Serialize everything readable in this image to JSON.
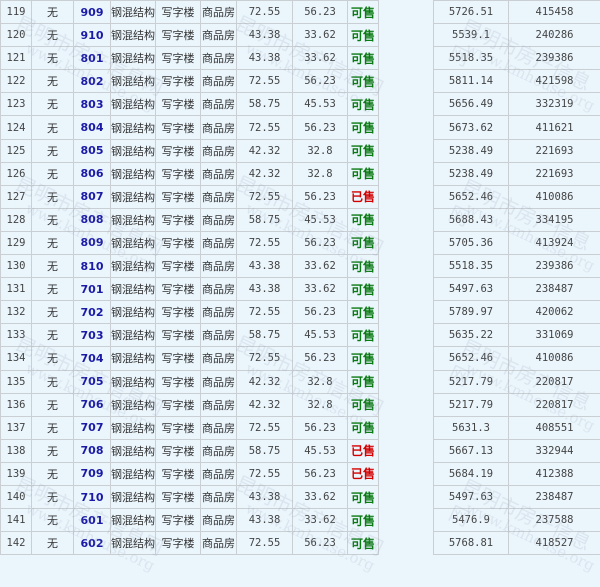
{
  "colors": {
    "available": "#0a7a12",
    "sold": "#d40000",
    "room_link": "#1a1aa6"
  },
  "rows": [
    {
      "no": "119",
      "floor_note": "无",
      "room": "909",
      "structure": "钢混结构",
      "usage": "写字楼",
      "type": "商品房",
      "build_area": "72.55",
      "inner_area": "56.23",
      "status": "可售",
      "unit_price": "5726.51",
      "total": "415458"
    },
    {
      "no": "120",
      "floor_note": "无",
      "room": "910",
      "structure": "钢混结构",
      "usage": "写字楼",
      "type": "商品房",
      "build_area": "43.38",
      "inner_area": "33.62",
      "status": "可售",
      "unit_price": "5539.1",
      "total": "240286"
    },
    {
      "no": "121",
      "floor_note": "无",
      "room": "801",
      "structure": "钢混结构",
      "usage": "写字楼",
      "type": "商品房",
      "build_area": "43.38",
      "inner_area": "33.62",
      "status": "可售",
      "unit_price": "5518.35",
      "total": "239386"
    },
    {
      "no": "122",
      "floor_note": "无",
      "room": "802",
      "structure": "钢混结构",
      "usage": "写字楼",
      "type": "商品房",
      "build_area": "72.55",
      "inner_area": "56.23",
      "status": "可售",
      "unit_price": "5811.14",
      "total": "421598"
    },
    {
      "no": "123",
      "floor_note": "无",
      "room": "803",
      "structure": "钢混结构",
      "usage": "写字楼",
      "type": "商品房",
      "build_area": "58.75",
      "inner_area": "45.53",
      "status": "可售",
      "unit_price": "5656.49",
      "total": "332319"
    },
    {
      "no": "124",
      "floor_note": "无",
      "room": "804",
      "structure": "钢混结构",
      "usage": "写字楼",
      "type": "商品房",
      "build_area": "72.55",
      "inner_area": "56.23",
      "status": "可售",
      "unit_price": "5673.62",
      "total": "411621"
    },
    {
      "no": "125",
      "floor_note": "无",
      "room": "805",
      "structure": "钢混结构",
      "usage": "写字楼",
      "type": "商品房",
      "build_area": "42.32",
      "inner_area": "32.8",
      "status": "可售",
      "unit_price": "5238.49",
      "total": "221693"
    },
    {
      "no": "126",
      "floor_note": "无",
      "room": "806",
      "structure": "钢混结构",
      "usage": "写字楼",
      "type": "商品房",
      "build_area": "42.32",
      "inner_area": "32.8",
      "status": "可售",
      "unit_price": "5238.49",
      "total": "221693"
    },
    {
      "no": "127",
      "floor_note": "无",
      "room": "807",
      "structure": "钢混结构",
      "usage": "写字楼",
      "type": "商品房",
      "build_area": "72.55",
      "inner_area": "56.23",
      "status": "已售",
      "unit_price": "5652.46",
      "total": "410086"
    },
    {
      "no": "128",
      "floor_note": "无",
      "room": "808",
      "structure": "钢混结构",
      "usage": "写字楼",
      "type": "商品房",
      "build_area": "58.75",
      "inner_area": "45.53",
      "status": "可售",
      "unit_price": "5688.43",
      "total": "334195"
    },
    {
      "no": "129",
      "floor_note": "无",
      "room": "809",
      "structure": "钢混结构",
      "usage": "写字楼",
      "type": "商品房",
      "build_area": "72.55",
      "inner_area": "56.23",
      "status": "可售",
      "unit_price": "5705.36",
      "total": "413924"
    },
    {
      "no": "130",
      "floor_note": "无",
      "room": "810",
      "structure": "钢混结构",
      "usage": "写字楼",
      "type": "商品房",
      "build_area": "43.38",
      "inner_area": "33.62",
      "status": "可售",
      "unit_price": "5518.35",
      "total": "239386"
    },
    {
      "no": "131",
      "floor_note": "无",
      "room": "701",
      "structure": "钢混结构",
      "usage": "写字楼",
      "type": "商品房",
      "build_area": "43.38",
      "inner_area": "33.62",
      "status": "可售",
      "unit_price": "5497.63",
      "total": "238487"
    },
    {
      "no": "132",
      "floor_note": "无",
      "room": "702",
      "structure": "钢混结构",
      "usage": "写字楼",
      "type": "商品房",
      "build_area": "72.55",
      "inner_area": "56.23",
      "status": "可售",
      "unit_price": "5789.97",
      "total": "420062"
    },
    {
      "no": "133",
      "floor_note": "无",
      "room": "703",
      "structure": "钢混结构",
      "usage": "写字楼",
      "type": "商品房",
      "build_area": "58.75",
      "inner_area": "45.53",
      "status": "可售",
      "unit_price": "5635.22",
      "total": "331069"
    },
    {
      "no": "134",
      "floor_note": "无",
      "room": "704",
      "structure": "钢混结构",
      "usage": "写字楼",
      "type": "商品房",
      "build_area": "72.55",
      "inner_area": "56.23",
      "status": "可售",
      "unit_price": "5652.46",
      "total": "410086"
    },
    {
      "no": "135",
      "floor_note": "无",
      "room": "705",
      "structure": "钢混结构",
      "usage": "写字楼",
      "type": "商品房",
      "build_area": "42.32",
      "inner_area": "32.8",
      "status": "可售",
      "unit_price": "5217.79",
      "total": "220817"
    },
    {
      "no": "136",
      "floor_note": "无",
      "room": "706",
      "structure": "钢混结构",
      "usage": "写字楼",
      "type": "商品房",
      "build_area": "42.32",
      "inner_area": "32.8",
      "status": "可售",
      "unit_price": "5217.79",
      "total": "220817"
    },
    {
      "no": "137",
      "floor_note": "无",
      "room": "707",
      "structure": "钢混结构",
      "usage": "写字楼",
      "type": "商品房",
      "build_area": "72.55",
      "inner_area": "56.23",
      "status": "可售",
      "unit_price": "5631.3",
      "total": "408551"
    },
    {
      "no": "138",
      "floor_note": "无",
      "room": "708",
      "structure": "钢混结构",
      "usage": "写字楼",
      "type": "商品房",
      "build_area": "58.75",
      "inner_area": "45.53",
      "status": "已售",
      "unit_price": "5667.13",
      "total": "332944"
    },
    {
      "no": "139",
      "floor_note": "无",
      "room": "709",
      "structure": "钢混结构",
      "usage": "写字楼",
      "type": "商品房",
      "build_area": "72.55",
      "inner_area": "56.23",
      "status": "已售",
      "unit_price": "5684.19",
      "total": "412388"
    },
    {
      "no": "140",
      "floor_note": "无",
      "room": "710",
      "structure": "钢混结构",
      "usage": "写字楼",
      "type": "商品房",
      "build_area": "43.38",
      "inner_area": "33.62",
      "status": "可售",
      "unit_price": "5497.63",
      "total": "238487"
    },
    {
      "no": "141",
      "floor_note": "无",
      "room": "601",
      "structure": "钢混结构",
      "usage": "写字楼",
      "type": "商品房",
      "build_area": "43.38",
      "inner_area": "33.62",
      "status": "可售",
      "unit_price": "5476.9",
      "total": "237588"
    },
    {
      "no": "142",
      "floor_note": "无",
      "room": "602",
      "structure": "钢混结构",
      "usage": "写字楼",
      "type": "商品房",
      "build_area": "72.55",
      "inner_area": "56.23",
      "status": "可售",
      "unit_price": "5768.81",
      "total": "418527"
    }
  ],
  "watermark": {
    "cn": "昆明市房产信息网",
    "url": "www.kmhouse.org"
  }
}
